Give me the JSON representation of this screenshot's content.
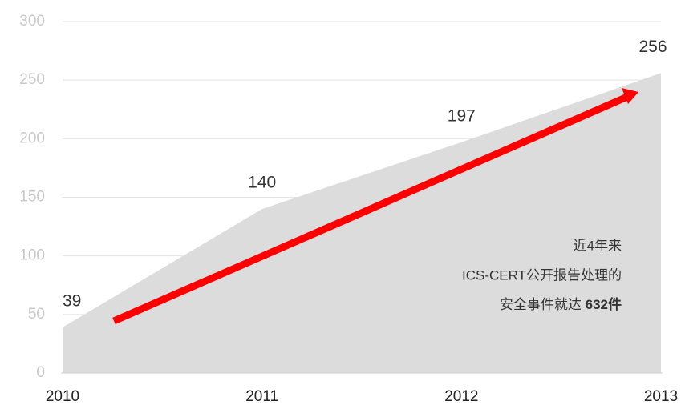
{
  "chart_data": {
    "type": "area",
    "categories": [
      "2010",
      "2011",
      "2012",
      "2013"
    ],
    "values": [
      39,
      140,
      197,
      256
    ],
    "color": "#dcdcdc",
    "ylim": [
      0,
      300
    ],
    "yticks": [
      0,
      50,
      100,
      150,
      200,
      250,
      300
    ],
    "grid": true,
    "annotation": {
      "lines": [
        "近4年来",
        "ICS-CERT公开报告处理的",
        "安全事件就达"
      ],
      "emphasis": "632件"
    }
  }
}
